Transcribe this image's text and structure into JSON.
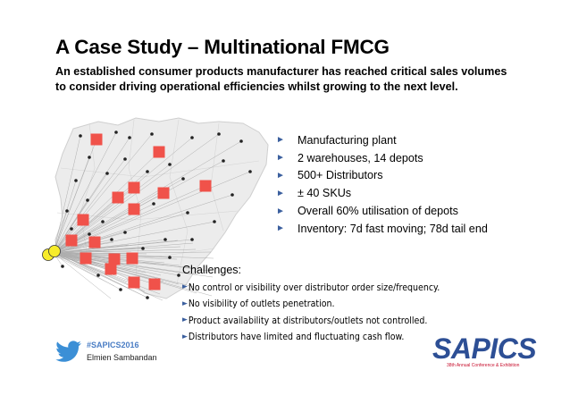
{
  "slide": {
    "title": "A Case Study – Multinational FMCG",
    "subtitle": "An established consumer products manufacturer has reached critical sales volumes to consider driving operational efficiencies whilst growing to the next level."
  },
  "facts": [
    {
      "text": "Manufacturing plant"
    },
    {
      "text": "2 warehouses, 14 depots"
    },
    {
      "text": "500+ Distributors"
    },
    {
      "text": "± 40 SKUs"
    },
    {
      "text": "Overall 60% utilisation of depots"
    },
    {
      "text": "Inventory: 7d fast moving; 78d tail end"
    }
  ],
  "challenges": {
    "title": "Challenges:",
    "items": [
      {
        "text": "No control or visibility over distributor order size/frequency."
      },
      {
        "text": "No visibility of outlets penetration."
      },
      {
        "text": "Product availability at distributors/outlets not controlled."
      },
      {
        "text": "Distributors have limited and fluctuating cash flow."
      }
    ]
  },
  "footer": {
    "hashtag": "#SAPICS2016",
    "presenter": "Elmien Sambandan",
    "logo_text": "SAPICS",
    "logo_tagline": "38th Annual Conference & Exhibition"
  },
  "colors": {
    "depot": "#f0524a",
    "plant": "#f7ec2a",
    "map_fill": "#ececec",
    "accent_blue": "#3b5f9e"
  },
  "icons": {
    "bullet": "right-triangle-arrow",
    "social": "twitter-bird-icon"
  }
}
